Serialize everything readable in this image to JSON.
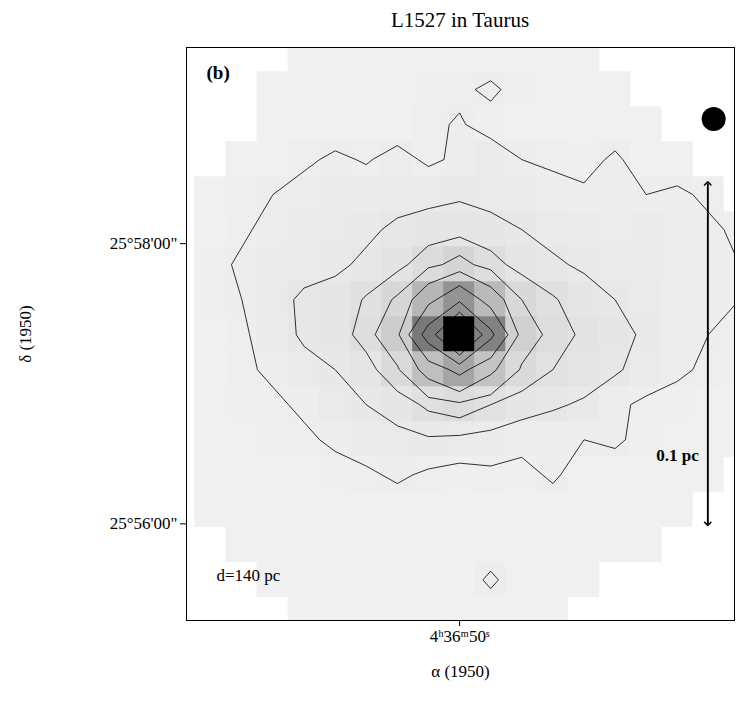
{
  "chart_data": {
    "type": "contour",
    "title": "L1527 in Taurus",
    "xlabel": "α (1950)",
    "ylabel": "δ (1950)",
    "xlim": [
      58.78,
      41.16
    ],
    "ylim": [
      1555.31,
      1559.4
    ],
    "xticks": [
      {
        "value": 50,
        "label": "4ʰ36ᵐ50ˢ"
      }
    ],
    "yticks": [
      {
        "value": 1558,
        "label": "25°58'00\""
      },
      {
        "value": 1556,
        "label": "25°56'00\""
      }
    ],
    "grid": false,
    "color": "#000000",
    "annotations": [
      "(b)",
      "d=140 pc"
    ],
    "scale_bar": {
      "label": "0.1 pc",
      "x": 42.02,
      "y": [
        1556.0,
        1558.43
      ],
      "label_y": 1556.49
    },
    "beam": {
      "x": 41.83,
      "y": 1558.89
    },
    "grid_x": [
      59.5,
      40.5
    ],
    "grid_y": [
      1559.475,
      1555.225
    ],
    "contour_levels": [
      0.6,
      1.2,
      2,
      3,
      5,
      8,
      12,
      17,
      23
    ],
    "cells": [
      [
        null,
        null,
        null,
        null,
        0.3,
        0.3,
        0.3,
        0.3,
        0.3,
        0.3,
        0.3,
        0.3,
        0.3,
        0.3,
        null,
        null,
        null,
        null,
        null
      ],
      [
        null,
        null,
        null,
        0.3,
        0.3,
        0.3,
        0.3,
        0.3,
        0.4,
        0.5,
        0.7,
        0.4,
        0.3,
        0.3,
        0.3,
        null,
        null,
        null,
        null
      ],
      [
        null,
        null,
        null,
        0.3,
        0.3,
        0.3,
        0.3,
        0.3,
        0.5,
        0.65,
        0.4,
        0.3,
        0.3,
        0.3,
        0.3,
        0.3,
        null,
        null,
        null
      ],
      [
        null,
        null,
        0.3,
        0.3,
        0.5,
        0.7,
        0.55,
        0.8,
        0.5,
        0.7,
        0.9,
        0.6,
        0.5,
        0.4,
        0.7,
        0.3,
        0.3,
        null,
        null
      ],
      [
        null,
        0.3,
        0.4,
        0.6,
        0.8,
        0.9,
        0.9,
        1.0,
        1.0,
        1.1,
        1.0,
        0.9,
        0.8,
        0.7,
        0.7,
        0.6,
        0.7,
        0.5,
        null
      ],
      [
        null,
        0.3,
        0.5,
        0.8,
        0.9,
        1.0,
        1.1,
        1.3,
        1.5,
        1.6,
        1.4,
        1.2,
        1.0,
        0.9,
        0.8,
        0.9,
        0.8,
        0.7,
        0.5
      ],
      [
        null,
        0.4,
        0.7,
        0.9,
        1.0,
        1.1,
        1.3,
        1.7,
        2.6,
        3.5,
        2.4,
        1.6,
        1.3,
        1.1,
        1.0,
        0.9,
        0.8,
        0.7,
        0.6
      ],
      [
        null,
        0.4,
        0.6,
        1.0,
        1.3,
        1.4,
        2.1,
        3.2,
        7,
        11,
        6.5,
        3.0,
        2.1,
        1.5,
        1.2,
        1.0,
        0.8,
        0.7,
        0.6
      ],
      [
        null,
        0.3,
        0.5,
        0.9,
        1.3,
        1.5,
        2.4,
        4.5,
        14,
        28,
        13,
        4.0,
        2.5,
        1.8,
        1.4,
        1.1,
        0.8,
        0.6,
        0.5
      ],
      [
        null,
        0.3,
        0.5,
        0.7,
        1.0,
        1.2,
        1.6,
        2.8,
        6,
        9,
        5.5,
        2.8,
        2.0,
        1.6,
        1.3,
        0.9,
        0.7,
        0.5,
        0.4
      ],
      [
        null,
        0.3,
        0.4,
        0.5,
        0.7,
        1.0,
        1.2,
        1.5,
        2.2,
        2.6,
        2.0,
        1.5,
        1.3,
        1.1,
        0.7,
        0.5,
        0.4,
        0.3,
        0.3
      ],
      [
        null,
        0.3,
        0.3,
        0.4,
        0.5,
        0.7,
        0.9,
        1.0,
        1.1,
        1.0,
        0.9,
        0.8,
        0.7,
        0.6,
        0.7,
        0.4,
        0.3,
        0.3,
        0.3
      ],
      [
        null,
        0.3,
        0.3,
        0.3,
        0.3,
        0.4,
        0.5,
        0.7,
        0.5,
        0.4,
        0.5,
        0.4,
        0.7,
        0.3,
        0.3,
        0.3,
        0.3,
        0.3,
        null
      ],
      [
        null,
        0.3,
        0.3,
        0.3,
        0.3,
        0.3,
        0.3,
        0.3,
        0.3,
        0.3,
        0.3,
        0.3,
        0.3,
        0.3,
        0.3,
        0.3,
        0.3,
        null,
        null
      ],
      [
        null,
        null,
        0.3,
        0.3,
        0.3,
        0.3,
        0.3,
        0.3,
        0.3,
        0.3,
        0.3,
        0.3,
        0.3,
        0.3,
        0.3,
        0.3,
        null,
        null,
        null
      ],
      [
        null,
        null,
        null,
        0.3,
        0.3,
        0.3,
        0.3,
        0.3,
        0.3,
        0.3,
        0.7,
        0.3,
        0.3,
        0.3,
        null,
        null,
        null,
        null,
        null
      ],
      [
        null,
        null,
        null,
        null,
        0.3,
        0.3,
        0.3,
        0.3,
        0.3,
        0.3,
        0.3,
        0.3,
        0.3,
        null,
        null,
        null,
        null,
        null,
        null
      ]
    ]
  }
}
